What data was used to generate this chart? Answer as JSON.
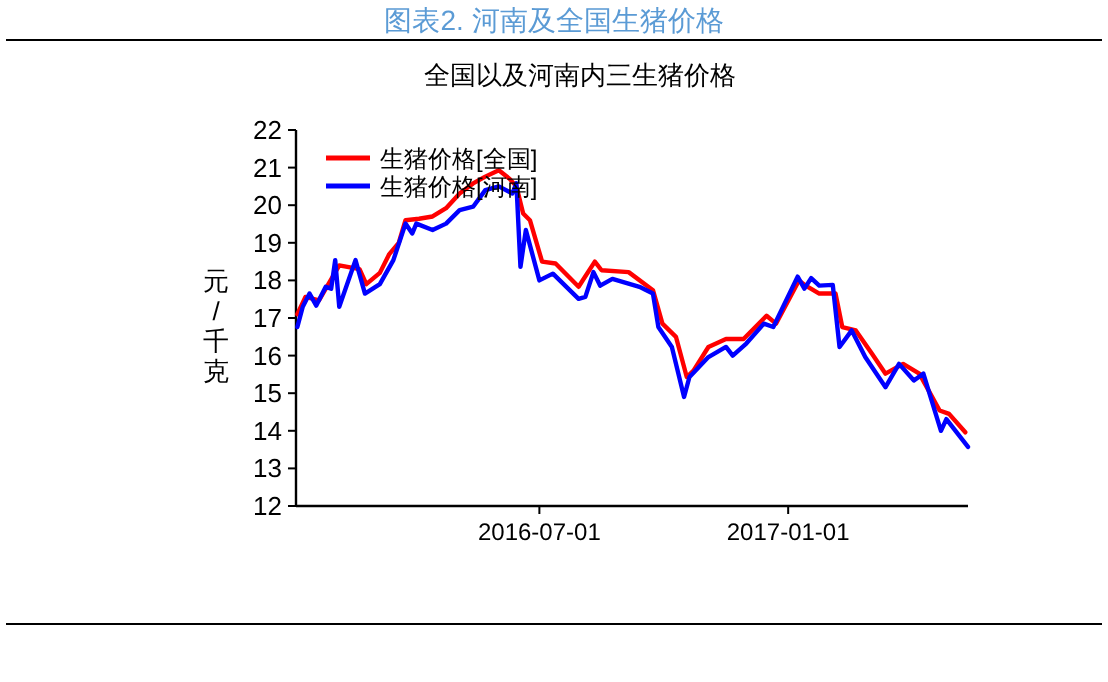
{
  "chart_data": {
    "type": "line",
    "title": "图表2.  河南及全国生猪价格",
    "subtitle": "全国以及河南内三生猪价格",
    "ylabel": "元/千克",
    "xlim": [
      "2016-01-03",
      "2017-05-14"
    ],
    "xticks": [
      {
        "value": "2016-07-01",
        "label": "2016-07-01"
      },
      {
        "value": "2017-01-01",
        "label": "2017-01-01"
      }
    ],
    "ylim": [
      12,
      22
    ],
    "yticks": [
      12,
      13,
      14,
      15,
      16,
      17,
      18,
      19,
      20,
      21,
      22
    ],
    "grid": false,
    "legend": "top left",
    "marker": "none",
    "line_style": "solid",
    "series": [
      {
        "name": "生猪价格[全国]",
        "color": "#ff0000",
        "x": [
          "2016-01-04",
          "2016-01-10",
          "2016-01-20",
          "2016-02-04",
          "2016-02-19",
          "2016-02-24",
          "2016-03-05",
          "2016-03-12",
          "2016-03-19",
          "2016-03-24",
          "2016-04-03",
          "2016-04-13",
          "2016-04-23",
          "2016-05-03",
          "2016-05-13",
          "2016-05-22",
          "2016-06-01",
          "2016-06-09",
          "2016-06-14",
          "2016-06-19",
          "2016-06-24",
          "2016-07-03",
          "2016-07-13",
          "2016-07-30",
          "2016-08-11",
          "2016-08-16",
          "2016-09-05",
          "2016-09-23",
          "2016-09-30",
          "2016-10-10",
          "2016-10-18",
          "2016-10-23",
          "2016-11-03",
          "2016-11-16",
          "2016-11-29",
          "2016-12-16",
          "2016-12-23",
          "2017-01-09",
          "2017-01-14",
          "2017-01-24",
          "2017-02-05",
          "2017-02-10",
          "2017-02-20",
          "2017-03-04",
          "2017-03-14",
          "2017-03-27",
          "2017-04-08",
          "2017-04-23",
          "2017-04-30",
          "2017-05-12"
        ],
        "values": [
          17.1,
          17.56,
          17.47,
          18.4,
          18.3,
          17.9,
          18.2,
          18.7,
          19.0,
          19.6,
          19.64,
          19.7,
          19.92,
          20.31,
          20.58,
          20.76,
          20.93,
          20.7,
          20.5,
          19.78,
          19.6,
          18.5,
          18.45,
          17.83,
          18.5,
          18.27,
          18.22,
          17.74,
          16.85,
          16.5,
          15.43,
          15.6,
          16.23,
          16.44,
          16.44,
          17.06,
          16.85,
          18.0,
          17.86,
          17.65,
          17.65,
          16.76,
          16.67,
          16.05,
          15.52,
          15.78,
          15.52,
          14.54,
          14.45,
          13.96
        ]
      },
      {
        "name": "生猪价格[河南]",
        "color": "#0000ff",
        "x": [
          "2016-01-04",
          "2016-01-08",
          "2016-01-13",
          "2016-01-18",
          "2016-01-25",
          "2016-01-29",
          "2016-02-01",
          "2016-02-04",
          "2016-02-16",
          "2016-02-23",
          "2016-03-05",
          "2016-03-15",
          "2016-03-24",
          "2016-03-29",
          "2016-04-01",
          "2016-04-13",
          "2016-04-23",
          "2016-05-03",
          "2016-05-13",
          "2016-05-22",
          "2016-06-01",
          "2016-06-11",
          "2016-06-14",
          "2016-06-17",
          "2016-06-21",
          "2016-07-01",
          "2016-07-11",
          "2016-07-30",
          "2016-08-04",
          "2016-08-10",
          "2016-08-15",
          "2016-08-24",
          "2016-09-13",
          "2016-09-23",
          "2016-09-27",
          "2016-10-07",
          "2016-10-16",
          "2016-10-20",
          "2016-11-03",
          "2016-11-16",
          "2016-11-21",
          "2016-12-01",
          "2016-12-14",
          "2016-12-21",
          "2017-01-08",
          "2017-01-13",
          "2017-01-18",
          "2017-01-24",
          "2017-02-03",
          "2017-02-08",
          "2017-02-17",
          "2017-02-27",
          "2017-03-14",
          "2017-03-24",
          "2017-04-04",
          "2017-04-11",
          "2017-04-24",
          "2017-04-28",
          "2017-05-14"
        ],
        "values": [
          16.76,
          17.3,
          17.65,
          17.33,
          17.83,
          17.78,
          18.54,
          17.3,
          18.54,
          17.65,
          17.9,
          18.54,
          19.51,
          19.25,
          19.51,
          19.34,
          19.51,
          19.87,
          19.96,
          20.4,
          20.5,
          20.31,
          20.58,
          18.36,
          19.34,
          18.0,
          18.18,
          17.51,
          17.56,
          18.22,
          17.86,
          18.04,
          17.83,
          17.65,
          16.76,
          16.23,
          14.9,
          15.43,
          15.96,
          16.23,
          16.0,
          16.32,
          16.85,
          16.76,
          18.1,
          17.78,
          18.06,
          17.86,
          17.88,
          16.23,
          16.67,
          15.96,
          15.16,
          15.78,
          15.34,
          15.52,
          14.0,
          14.31,
          13.57
        ]
      }
    ]
  }
}
